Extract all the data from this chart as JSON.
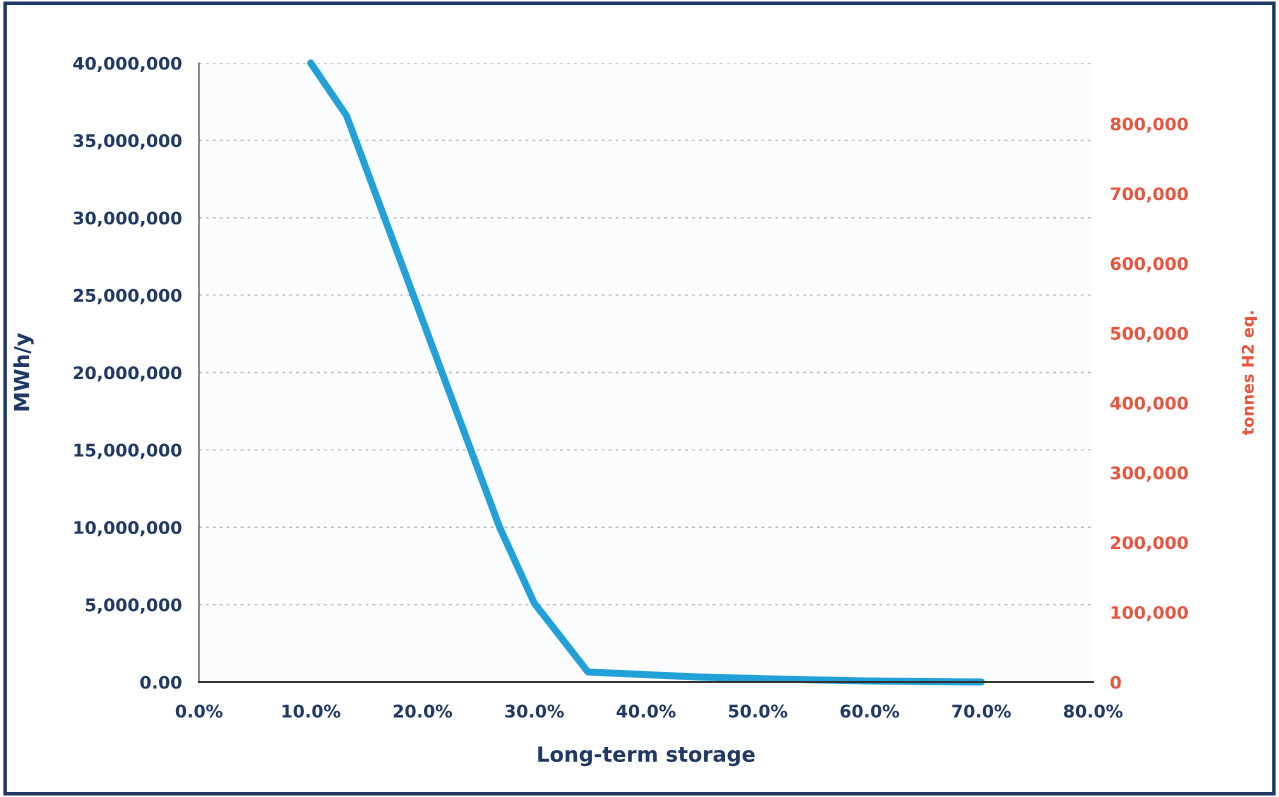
{
  "chart_data": {
    "type": "line",
    "xlabel": "Long-term storage",
    "ylabel": "MWh/y",
    "y2label": "tonnes H2 eq.",
    "x": [
      10,
      13.2,
      26.9,
      30,
      34.8,
      44.7,
      50,
      60,
      70
    ],
    "series": [
      {
        "color": "#22a0d8",
        "values": [
          40000000,
          36600000,
          10000000,
          5100000,
          650000,
          320000,
          220000,
          60000,
          0
        ]
      }
    ],
    "xlim": [
      0,
      80
    ],
    "xticks": [
      {
        "value": 0,
        "label": "0.0%"
      },
      {
        "value": 10,
        "label": "10.0%"
      },
      {
        "value": 20,
        "label": "20.0%"
      },
      {
        "value": 30,
        "label": "30.0%"
      },
      {
        "value": 40,
        "label": "40.0%"
      },
      {
        "value": 50,
        "label": "50.0%"
      },
      {
        "value": 60,
        "label": "60.0%"
      },
      {
        "value": 70,
        "label": "70.0%"
      },
      {
        "value": 80,
        "label": "80.0%"
      }
    ],
    "ylim": [
      0,
      40000000
    ],
    "yticks": [
      {
        "value": 0,
        "label": "0.00"
      },
      {
        "value": 5000000,
        "label": "5,000,000"
      },
      {
        "value": 10000000,
        "label": "10,000,000"
      },
      {
        "value": 15000000,
        "label": "15,000,000"
      },
      {
        "value": 20000000,
        "label": "20,000,000"
      },
      {
        "value": 25000000,
        "label": "25,000,000"
      },
      {
        "value": 30000000,
        "label": "30,000,000"
      },
      {
        "value": 35000000,
        "label": "35,000,000"
      },
      {
        "value": 40000000,
        "label": "40,000,000"
      }
    ],
    "y2lim": [
      0,
      887000
    ],
    "y2ticks": [
      {
        "value": 0,
        "label": "0"
      },
      {
        "value": 100000,
        "label": "100,000"
      },
      {
        "value": 200000,
        "label": "200,000"
      },
      {
        "value": 300000,
        "label": "300,000"
      },
      {
        "value": 400000,
        "label": "400,000"
      },
      {
        "value": 500000,
        "label": "500,000"
      },
      {
        "value": 600000,
        "label": "600,000"
      },
      {
        "value": 700000,
        "label": "700,000"
      },
      {
        "value": 800000,
        "label": "800,000"
      }
    ],
    "grid": "y",
    "marker": "none",
    "line_style": "solid",
    "legend": false
  }
}
